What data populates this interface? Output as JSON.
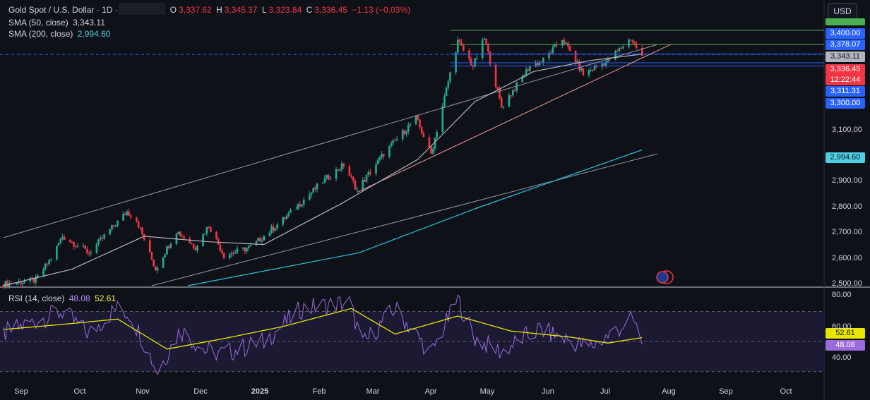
{
  "header": {
    "symbol": "Gold Spot / U.S. Dollar · 1D ·",
    "o_label": "O",
    "o_value": "3,337.62",
    "h_label": "H",
    "h_value": "3,345.37",
    "l_label": "L",
    "l_value": "3,323.84",
    "c_label": "C",
    "c_value": "3,336.45",
    "change": "−1.13 (−0.03%)",
    "sma50_label": "SMA (50, close)",
    "sma50_value": "3,343.11",
    "sma200_label": "SMA (200, close)",
    "sma200_value": "2,994.60",
    "rsi_label": "RSI (14, close)",
    "rsi_value": "48.08",
    "rsi_ma_value": "52.61"
  },
  "currency_button": "USD",
  "price_tags": {
    "t1": "3,400.00",
    "t2": "3,378.07",
    "t3": "3,343.11",
    "t4": "3,336.45",
    "t5": "12:22:44",
    "t6": "3,311.31",
    "t7": "3,300.00",
    "t8": "2,994.60",
    "rsi_ma": "52.61",
    "rsi": "48.08"
  },
  "price_axis_labels": [
    "3,100.00",
    "2,900.00",
    "2,800.00",
    "2,700.00",
    "2,600.00",
    "2,500.00"
  ],
  "rsi_axis_labels": [
    "80.00",
    "60.00",
    "40.00"
  ],
  "x_labels": [
    "Sep",
    "Oct",
    "Nov",
    "Dec",
    "2025",
    "Feb",
    "Mar",
    "Apr",
    "May",
    "Jun",
    "Jul",
    "Aug",
    "Sep",
    "Oct"
  ],
  "colors": {
    "up": "#22ab94",
    "down": "#f23645",
    "sma50": "#b2b5be",
    "sma200": "#26c6da",
    "rsi": "#9c6ade",
    "rsi_ma": "#e6e600",
    "resistance": "#4caf50",
    "support_blue": "#2962ff",
    "trend_red": "#ef9a9a",
    "channel": "#9598a1",
    "bg": "#0f1119"
  },
  "chart_data": [
    {
      "type": "candlestick",
      "title": "Gold Spot / U.S. Dollar · 1D",
      "x_range": [
        "2024-08-26",
        "2025-10-31"
      ],
      "ylim": [
        2500,
        3445
      ],
      "yscale": "linear",
      "grid": false,
      "series_anchors": {
        "name": "price_close",
        "points": [
          [
            "2024-08-26",
            2505
          ],
          [
            "2024-09-12",
            2520
          ],
          [
            "2024-09-20",
            2600
          ],
          [
            "2024-09-26",
            2680
          ],
          [
            "2024-10-10",
            2620
          ],
          [
            "2024-10-30",
            2770
          ],
          [
            "2024-11-04",
            2740
          ],
          [
            "2024-11-14",
            2560
          ],
          [
            "2024-11-25",
            2700
          ],
          [
            "2024-12-05",
            2640
          ],
          [
            "2024-12-12",
            2720
          ],
          [
            "2024-12-20",
            2610
          ],
          [
            "2025-01-03",
            2640
          ],
          [
            "2025-01-20",
            2740
          ],
          [
            "2025-02-10",
            2880
          ],
          [
            "2025-02-21",
            2940
          ],
          [
            "2025-02-28",
            2850
          ],
          [
            "2025-03-14",
            2980
          ],
          [
            "2025-03-31",
            3110
          ],
          [
            "2025-04-08",
            2980
          ],
          [
            "2025-04-22",
            3390
          ],
          [
            "2025-04-30",
            3300
          ],
          [
            "2025-05-06",
            3400
          ],
          [
            "2025-05-15",
            3150
          ],
          [
            "2025-05-30",
            3300
          ],
          [
            "2025-06-06",
            3320
          ],
          [
            "2025-06-16",
            3400
          ],
          [
            "2025-06-27",
            3270
          ],
          [
            "2025-07-10",
            3320
          ],
          [
            "2025-07-22",
            3400
          ],
          [
            "2025-07-28",
            3336.45
          ]
        ]
      },
      "overlays": [
        {
          "name": "SMA (50, close)",
          "last": 3343.11,
          "points": [
            [
              "2024-08-26",
              2500
            ],
            [
              "2024-10-01",
              2560
            ],
            [
              "2024-11-08",
              2680
            ],
            [
              "2024-12-12",
              2660
            ],
            [
              "2025-01-10",
              2650
            ],
            [
              "2025-02-20",
              2800
            ],
            [
              "2025-04-01",
              2960
            ],
            [
              "2025-05-01",
              3170
            ],
            [
              "2025-06-01",
              3280
            ],
            [
              "2025-07-01",
              3320
            ],
            [
              "2025-07-28",
              3343.11
            ]
          ]
        },
        {
          "name": "SMA (200, close)",
          "last": 2994.6,
          "points": [
            [
              "2024-12-01",
              2500
            ],
            [
              "2025-03-01",
              2620
            ],
            [
              "2025-05-01",
              2780
            ],
            [
              "2025-07-28",
              2994.6
            ]
          ]
        }
      ],
      "horizontal_levels": [
        3430,
        3378.07,
        3343.11,
        3311.31,
        3300
      ],
      "trend_lines": [
        {
          "from": [
            "2024-08-26",
            2675
          ],
          "to": [
            "2025-08-05",
            3378
          ]
        },
        {
          "from": [
            "2024-11-12",
            2500
          ],
          "to": [
            "2025-08-05",
            2980
          ]
        },
        {
          "from": [
            "2025-02-28",
            2840
          ],
          "to": [
            "2025-08-12",
            3378
          ]
        }
      ],
      "last_price": 3336.45
    },
    {
      "type": "line",
      "title": "RSI (14, close)",
      "ylim": [
        20,
        82
      ],
      "levels": [
        70,
        50,
        30
      ],
      "series": [
        {
          "name": "RSI (14, close)",
          "last": 48.08,
          "points": [
            [
              "2024-08-26",
              55
            ],
            [
              "2024-09-12",
              64
            ],
            [
              "2024-09-26",
              70
            ],
            [
              "2024-10-10",
              55
            ],
            [
              "2024-10-24",
              72
            ],
            [
              "2024-11-01",
              68
            ],
            [
              "2024-11-15",
              30
            ],
            [
              "2024-11-27",
              58
            ],
            [
              "2024-12-10",
              44
            ],
            [
              "2024-12-20",
              42
            ],
            [
              "2025-01-10",
              50
            ],
            [
              "2025-01-30",
              72
            ],
            [
              "2025-02-24",
              76
            ],
            [
              "2025-03-03",
              48
            ],
            [
              "2025-03-20",
              72
            ],
            [
              "2025-04-08",
              42
            ],
            [
              "2025-04-22",
              78
            ],
            [
              "2025-05-01",
              52
            ],
            [
              "2025-05-15",
              43
            ],
            [
              "2025-05-26",
              52
            ],
            [
              "2025-06-04",
              58
            ],
            [
              "2025-06-30",
              46
            ],
            [
              "2025-07-08",
              52
            ],
            [
              "2025-07-23",
              65
            ],
            [
              "2025-07-28",
              48.08
            ]
          ]
        },
        {
          "name": "RSI-based MA",
          "last": 52.61,
          "points": [
            [
              "2024-08-26",
              58
            ],
            [
              "2024-10-01",
              62
            ],
            [
              "2024-10-25",
              65
            ],
            [
              "2024-11-20",
              45
            ],
            [
              "2024-12-20",
              52
            ],
            [
              "2025-01-20",
              60
            ],
            [
              "2025-02-25",
              72
            ],
            [
              "2025-03-20",
              55
            ],
            [
              "2025-04-22",
              67
            ],
            [
              "2025-05-20",
              57
            ],
            [
              "2025-06-20",
              53
            ],
            [
              "2025-07-10",
              49
            ],
            [
              "2025-07-28",
              52.61
            ]
          ]
        }
      ]
    }
  ]
}
